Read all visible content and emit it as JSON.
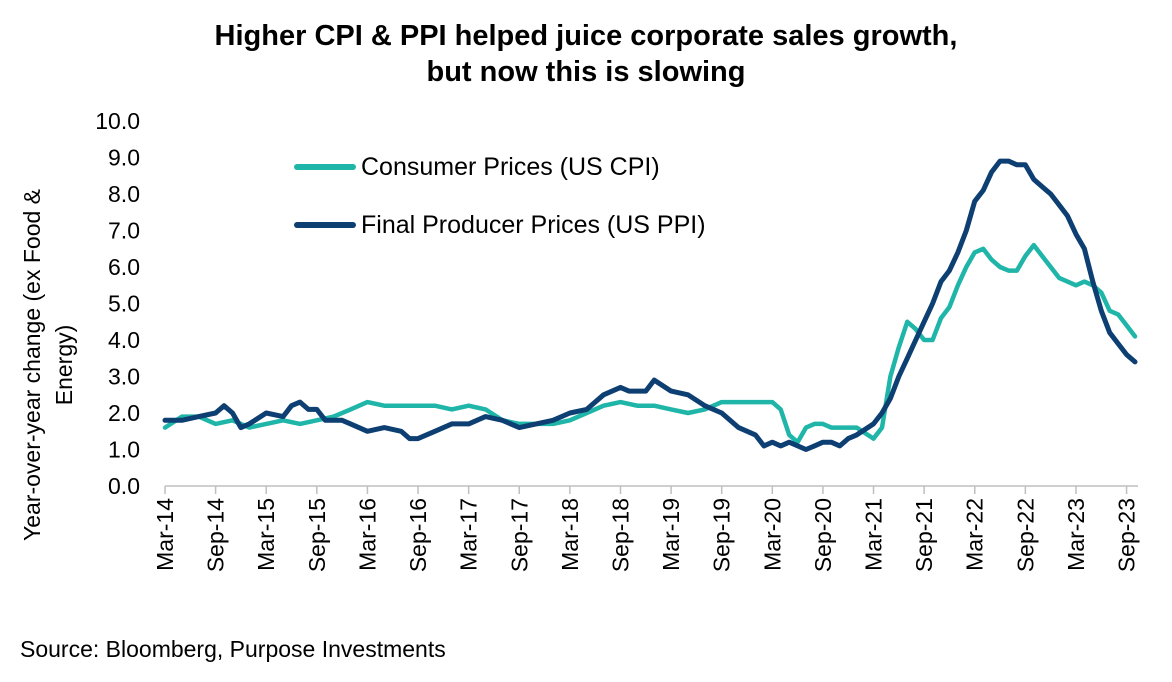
{
  "chart_data": {
    "type": "line",
    "title": "Higher CPI & PPI helped juice corporate sales growth, but now this is slowing",
    "title_lines": [
      "Higher CPI & PPI helped juice corporate sales growth,",
      "but now this is slowing"
    ],
    "ylabel": "Year-over-year change (ex Food & Energy)",
    "ylabel_lines": [
      "Year-over-year change (ex Food &",
      "Energy)"
    ],
    "xlabel": "",
    "ylim": [
      0,
      10
    ],
    "yticks": [
      "0.0",
      "1.0",
      "2.0",
      "3.0",
      "4.0",
      "5.0",
      "6.0",
      "7.0",
      "8.0",
      "9.0",
      "10.0"
    ],
    "x_start": "Mar-14",
    "x_count": 115,
    "xticks": [
      "Mar-14",
      "Sep-14",
      "Mar-15",
      "Sep-15",
      "Mar-16",
      "Sep-16",
      "Mar-17",
      "Sep-17",
      "Mar-18",
      "Sep-18",
      "Mar-19",
      "Sep-19",
      "Mar-20",
      "Sep-20",
      "Mar-21",
      "Sep-21",
      "Mar-22",
      "Sep-22",
      "Mar-23",
      "Sep-23"
    ],
    "legend_position": "top-left",
    "series": [
      {
        "name": "Consumer Prices (US CPI)",
        "color": "#1fb5a8",
        "points": [
          [
            0,
            1.6
          ],
          [
            2,
            1.9
          ],
          [
            4,
            1.9
          ],
          [
            6,
            1.7
          ],
          [
            8,
            1.8
          ],
          [
            10,
            1.6
          ],
          [
            12,
            1.7
          ],
          [
            14,
            1.8
          ],
          [
            16,
            1.7
          ],
          [
            18,
            1.8
          ],
          [
            20,
            1.9
          ],
          [
            22,
            2.1
          ],
          [
            24,
            2.3
          ],
          [
            26,
            2.2
          ],
          [
            28,
            2.2
          ],
          [
            30,
            2.2
          ],
          [
            32,
            2.2
          ],
          [
            34,
            2.1
          ],
          [
            36,
            2.2
          ],
          [
            38,
            2.1
          ],
          [
            40,
            1.8
          ],
          [
            42,
            1.7
          ],
          [
            44,
            1.7
          ],
          [
            46,
            1.7
          ],
          [
            48,
            1.8
          ],
          [
            50,
            2.0
          ],
          [
            52,
            2.2
          ],
          [
            54,
            2.3
          ],
          [
            56,
            2.2
          ],
          [
            58,
            2.2
          ],
          [
            60,
            2.1
          ],
          [
            62,
            2.0
          ],
          [
            64,
            2.1
          ],
          [
            66,
            2.3
          ],
          [
            68,
            2.3
          ],
          [
            70,
            2.3
          ],
          [
            72,
            2.3
          ],
          [
            73,
            2.1
          ],
          [
            74,
            1.4
          ],
          [
            75,
            1.2
          ],
          [
            76,
            1.6
          ],
          [
            77,
            1.7
          ],
          [
            78,
            1.7
          ],
          [
            79,
            1.6
          ],
          [
            80,
            1.6
          ],
          [
            82,
            1.6
          ],
          [
            84,
            1.3
          ],
          [
            85,
            1.6
          ],
          [
            86,
            3.0
          ],
          [
            87,
            3.8
          ],
          [
            88,
            4.5
          ],
          [
            89,
            4.3
          ],
          [
            90,
            4.0
          ],
          [
            91,
            4.0
          ],
          [
            92,
            4.6
          ],
          [
            93,
            4.9
          ],
          [
            94,
            5.5
          ],
          [
            95,
            6.0
          ],
          [
            96,
            6.4
          ],
          [
            97,
            6.5
          ],
          [
            98,
            6.2
          ],
          [
            99,
            6.0
          ],
          [
            100,
            5.9
          ],
          [
            101,
            5.9
          ],
          [
            102,
            6.3
          ],
          [
            103,
            6.6
          ],
          [
            104,
            6.3
          ],
          [
            105,
            6.0
          ],
          [
            106,
            5.7
          ],
          [
            107,
            5.6
          ],
          [
            108,
            5.5
          ],
          [
            109,
            5.6
          ],
          [
            110,
            5.5
          ],
          [
            111,
            5.3
          ],
          [
            112,
            4.8
          ],
          [
            113,
            4.7
          ],
          [
            114,
            4.4
          ],
          [
            115,
            4.1
          ]
        ]
      },
      {
        "name": "Final Producer Prices (US PPI)",
        "color": "#0d3f73",
        "points": [
          [
            0,
            1.8
          ],
          [
            2,
            1.8
          ],
          [
            4,
            1.9
          ],
          [
            6,
            2.0
          ],
          [
            7,
            2.2
          ],
          [
            8,
            2.0
          ],
          [
            9,
            1.6
          ],
          [
            10,
            1.7
          ],
          [
            12,
            2.0
          ],
          [
            14,
            1.9
          ],
          [
            15,
            2.2
          ],
          [
            16,
            2.3
          ],
          [
            17,
            2.1
          ],
          [
            18,
            2.1
          ],
          [
            19,
            1.8
          ],
          [
            21,
            1.8
          ],
          [
            22,
            1.7
          ],
          [
            24,
            1.5
          ],
          [
            26,
            1.6
          ],
          [
            28,
            1.5
          ],
          [
            29,
            1.3
          ],
          [
            30,
            1.3
          ],
          [
            32,
            1.5
          ],
          [
            34,
            1.7
          ],
          [
            36,
            1.7
          ],
          [
            38,
            1.9
          ],
          [
            40,
            1.8
          ],
          [
            42,
            1.6
          ],
          [
            44,
            1.7
          ],
          [
            46,
            1.8
          ],
          [
            48,
            2.0
          ],
          [
            50,
            2.1
          ],
          [
            52,
            2.5
          ],
          [
            54,
            2.7
          ],
          [
            55,
            2.6
          ],
          [
            57,
            2.6
          ],
          [
            58,
            2.9
          ],
          [
            60,
            2.6
          ],
          [
            62,
            2.5
          ],
          [
            64,
            2.2
          ],
          [
            66,
            2.0
          ],
          [
            68,
            1.6
          ],
          [
            70,
            1.4
          ],
          [
            71,
            1.1
          ],
          [
            72,
            1.2
          ],
          [
            73,
            1.1
          ],
          [
            74,
            1.2
          ],
          [
            76,
            1.0
          ],
          [
            77,
            1.1
          ],
          [
            78,
            1.2
          ],
          [
            79,
            1.2
          ],
          [
            80,
            1.1
          ],
          [
            81,
            1.3
          ],
          [
            82,
            1.4
          ],
          [
            84,
            1.7
          ],
          [
            85,
            2.0
          ],
          [
            86,
            2.4
          ],
          [
            87,
            3.0
          ],
          [
            88,
            3.5
          ],
          [
            89,
            4.0
          ],
          [
            90,
            4.5
          ],
          [
            91,
            5.0
          ],
          [
            92,
            5.6
          ],
          [
            93,
            5.9
          ],
          [
            94,
            6.4
          ],
          [
            95,
            7.0
          ],
          [
            96,
            7.8
          ],
          [
            97,
            8.1
          ],
          [
            98,
            8.6
          ],
          [
            99,
            8.9
          ],
          [
            100,
            8.9
          ],
          [
            101,
            8.8
          ],
          [
            102,
            8.8
          ],
          [
            103,
            8.4
          ],
          [
            104,
            8.2
          ],
          [
            105,
            8.0
          ],
          [
            106,
            7.7
          ],
          [
            107,
            7.4
          ],
          [
            108,
            6.9
          ],
          [
            109,
            6.5
          ],
          [
            110,
            5.6
          ],
          [
            111,
            4.8
          ],
          [
            112,
            4.2
          ],
          [
            113,
            3.9
          ],
          [
            114,
            3.6
          ],
          [
            115,
            3.4
          ]
        ]
      }
    ]
  },
  "source": "Source: Bloomberg, Purpose Investments"
}
